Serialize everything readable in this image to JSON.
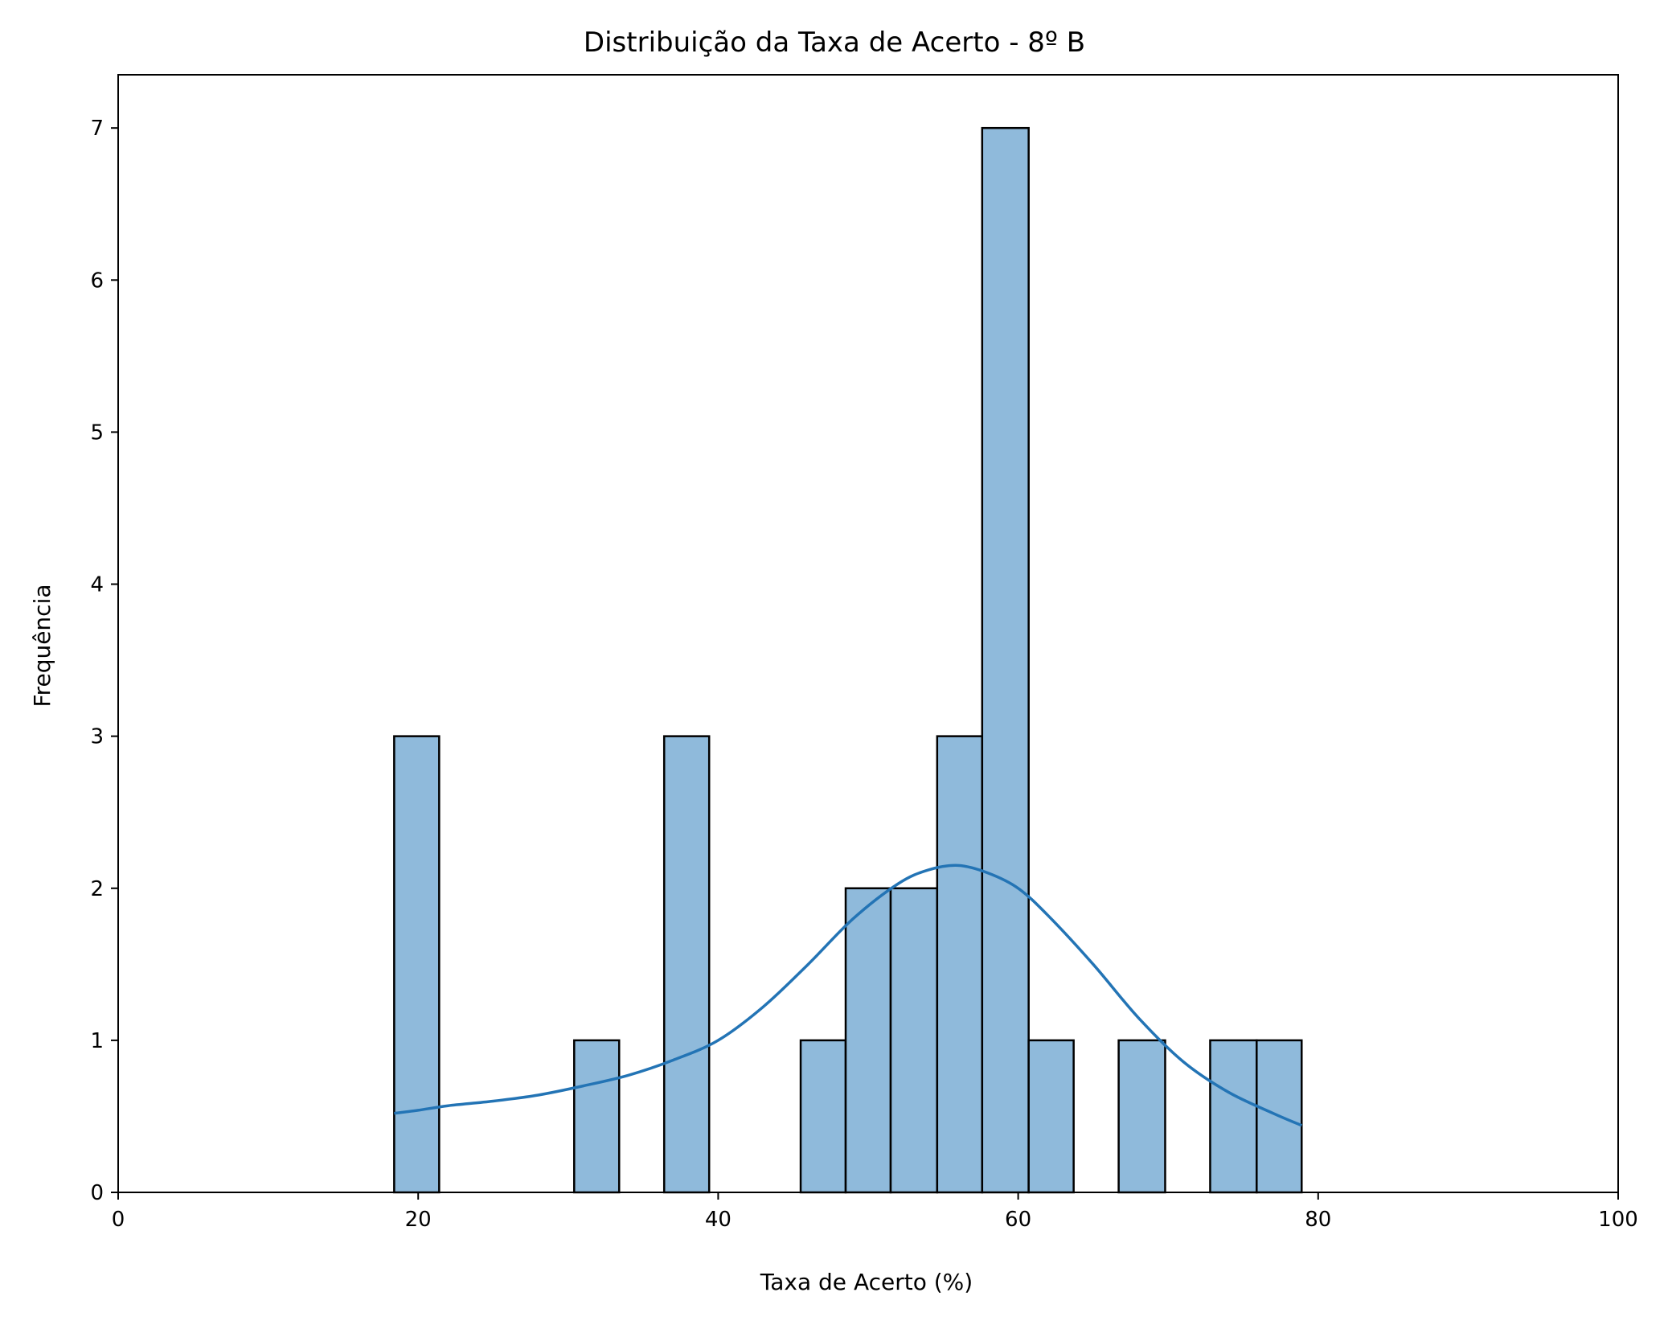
{
  "chart_data": {
    "type": "bar",
    "subtype": "histogram_with_kde",
    "title": "Distribuição da Taxa de Acerto - 8º B",
    "xlabel": "Taxa de Acerto (%)",
    "ylabel": "Frequência",
    "xlim": [
      0,
      100
    ],
    "ylim": [
      0,
      7.35
    ],
    "xticks": [
      "0",
      "20",
      "40",
      "60",
      "80",
      "100"
    ],
    "yticks": [
      "0",
      "1",
      "2",
      "3",
      "4",
      "5",
      "6",
      "7"
    ],
    "bins": [
      {
        "start": 18.4,
        "end": 21.4,
        "count": 3
      },
      {
        "start": 21.4,
        "end": 24.4,
        "count": 0
      },
      {
        "start": 24.4,
        "end": 27.4,
        "count": 0
      },
      {
        "start": 27.4,
        "end": 30.4,
        "count": 0
      },
      {
        "start": 30.4,
        "end": 33.4,
        "count": 1
      },
      {
        "start": 33.4,
        "end": 36.4,
        "count": 0
      },
      {
        "start": 36.4,
        "end": 39.4,
        "count": 3
      },
      {
        "start": 39.4,
        "end": 42.4,
        "count": 0
      },
      {
        "start": 42.4,
        "end": 45.5,
        "count": 0
      },
      {
        "start": 45.5,
        "end": 48.5,
        "count": 1
      },
      {
        "start": 48.5,
        "end": 51.5,
        "count": 2
      },
      {
        "start": 51.5,
        "end": 54.6,
        "count": 2
      },
      {
        "start": 54.6,
        "end": 57.6,
        "count": 3
      },
      {
        "start": 57.6,
        "end": 60.7,
        "count": 7
      },
      {
        "start": 60.7,
        "end": 63.7,
        "count": 1
      },
      {
        "start": 63.7,
        "end": 66.7,
        "count": 0
      },
      {
        "start": 66.7,
        "end": 69.8,
        "count": 1
      },
      {
        "start": 69.8,
        "end": 72.8,
        "count": 0
      },
      {
        "start": 72.8,
        "end": 75.9,
        "count": 1
      },
      {
        "start": 75.9,
        "end": 78.9,
        "count": 1
      }
    ],
    "kde": {
      "x": [
        18.4,
        20,
        22,
        25,
        28,
        31,
        34,
        37,
        40,
        43,
        46,
        49,
        52,
        54,
        56,
        58,
        60,
        62,
        65,
        68,
        71,
        74,
        77,
        78.9
      ],
      "y": [
        0.52,
        0.54,
        0.57,
        0.6,
        0.64,
        0.7,
        0.77,
        0.87,
        1.0,
        1.22,
        1.5,
        1.8,
        2.03,
        2.12,
        2.15,
        2.1,
        2.0,
        1.82,
        1.5,
        1.15,
        0.86,
        0.66,
        0.52,
        0.44
      ]
    },
    "grid": false,
    "colors": {
      "bar_fill": "#8fbadb",
      "bar_edge": "#000000",
      "kde_line": "#2374b5",
      "axis": "#000000"
    }
  }
}
